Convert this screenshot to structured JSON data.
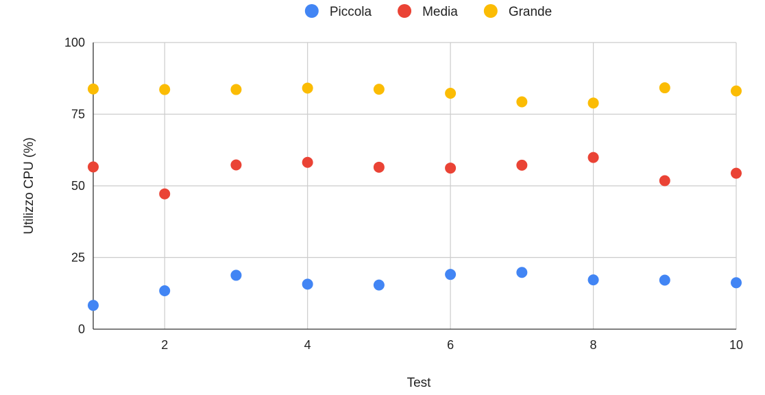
{
  "chart_data": {
    "type": "scatter",
    "title": "",
    "xlabel": "Test",
    "ylabel": "Utilizzo CPU (%)",
    "xlim": [
      1,
      10
    ],
    "ylim": [
      0,
      100
    ],
    "x_ticks": [
      "2",
      "4",
      "6",
      "8",
      "10"
    ],
    "y_ticks": [
      "0",
      "25",
      "50",
      "75",
      "100"
    ],
    "grid": true,
    "legend_position": "top-center",
    "x": [
      1,
      2,
      3,
      4,
      5,
      6,
      7,
      8,
      9,
      10
    ],
    "series": [
      {
        "name": "Piccola",
        "color": "#4285F4",
        "values": [
          8.3,
          13.4,
          18.8,
          15.7,
          15.4,
          19.1,
          19.8,
          17.2,
          17.1,
          16.2
        ]
      },
      {
        "name": "Media",
        "color": "#EA4335",
        "values": [
          56.6,
          47.2,
          57.3,
          58.2,
          56.5,
          56.2,
          57.2,
          59.9,
          51.8,
          54.4
        ]
      },
      {
        "name": "Grande",
        "color": "#FBBC04",
        "values": [
          83.8,
          83.6,
          83.6,
          84.1,
          83.7,
          82.3,
          79.3,
          78.9,
          84.2,
          83.1
        ]
      }
    ]
  }
}
